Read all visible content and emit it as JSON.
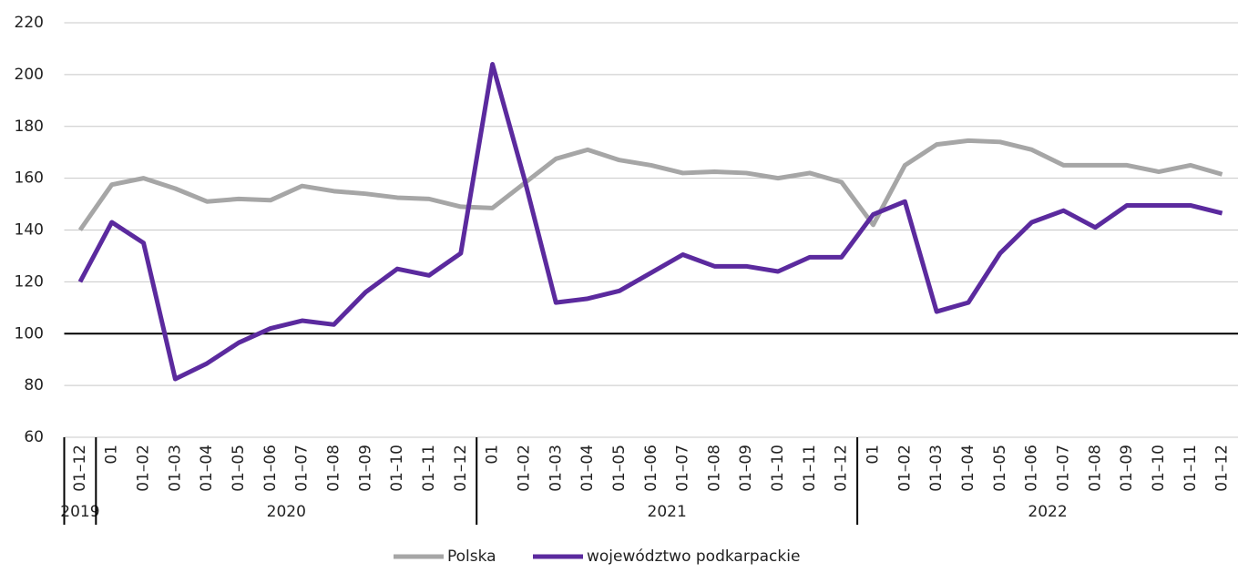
{
  "chart_data": {
    "type": "line",
    "categories": [
      "01–12",
      "01",
      "01–02",
      "01–03",
      "01–04",
      "01–05",
      "01–06",
      "01–07",
      "01–08",
      "01–09",
      "01–10",
      "01–11",
      "01–12",
      "01",
      "01–02",
      "01–03",
      "01–04",
      "01–05",
      "01–06",
      "01–07",
      "01–08",
      "01–09",
      "01–10",
      "01–11",
      "01–12",
      "01",
      "01–02",
      "01–03",
      "01–04",
      "01–05",
      "01–06",
      "01–07",
      "01–08",
      "01–09",
      "01–10",
      "01–11",
      "01–12"
    ],
    "groups": [
      {
        "label": "2019",
        "size": 1
      },
      {
        "label": "2020",
        "size": 12
      },
      {
        "label": "2021",
        "size": 12
      },
      {
        "label": "2022",
        "size": 12
      }
    ],
    "series": [
      {
        "name": "Polska",
        "color": "#a6a6a6",
        "values": [
          140,
          157.5,
          160,
          156,
          151,
          152,
          151.5,
          157,
          155,
          154,
          152.5,
          152,
          149,
          148.5,
          158,
          167.5,
          171,
          167,
          165,
          162,
          162.5,
          162,
          160,
          162,
          158.5,
          142,
          165,
          173,
          174.5,
          174,
          171,
          165,
          165,
          165,
          162.5,
          165,
          161.5
        ]
      },
      {
        "name": "województwo podkarpackie",
        "color": "#5b2a9e",
        "values": [
          120,
          143,
          135,
          82.5,
          88.5,
          96.5,
          102,
          105,
          103.5,
          116,
          125,
          122.5,
          131,
          204,
          160,
          112,
          113.5,
          116.5,
          123.5,
          130.5,
          126,
          126,
          124,
          129.5,
          129.5,
          146,
          151,
          108.5,
          112,
          131,
          143,
          147.5,
          141,
          149.5,
          149.5,
          149.5,
          146.5
        ]
      }
    ],
    "ylim": [
      60,
      220
    ],
    "yticks": [
      60,
      80,
      100,
      120,
      140,
      160,
      180,
      200,
      220
    ],
    "baseline": 100,
    "grid": true,
    "legend": "bottom"
  }
}
